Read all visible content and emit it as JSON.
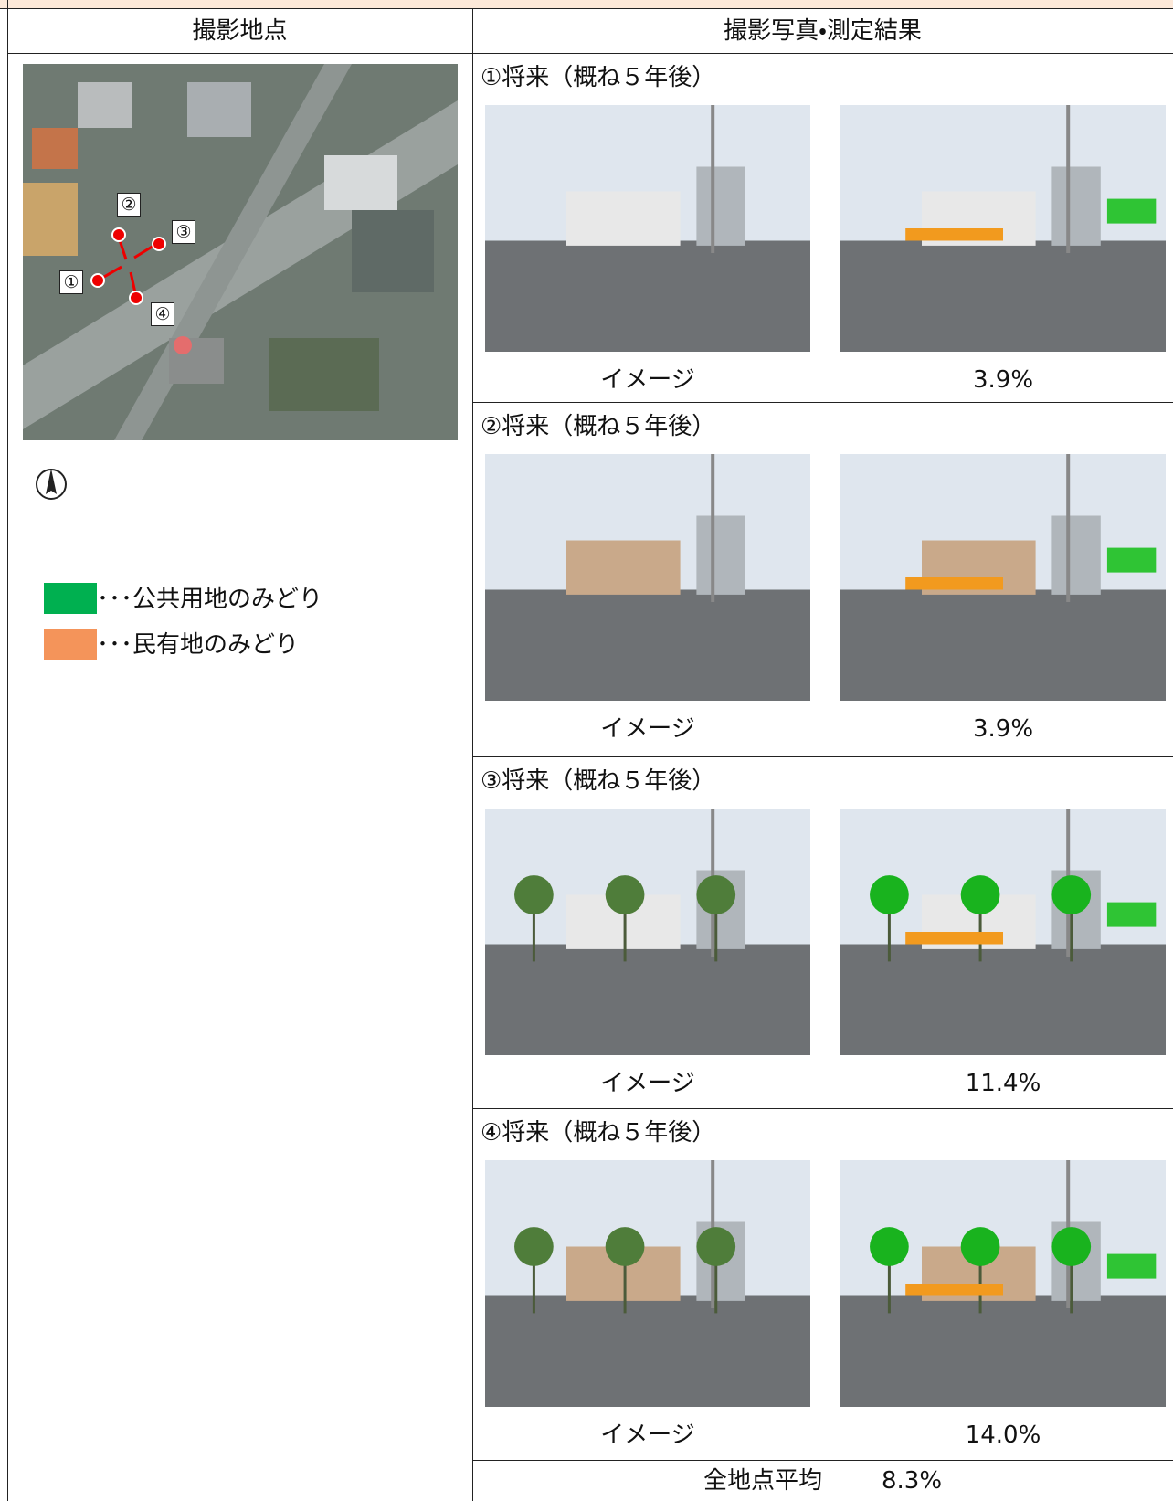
{
  "header": {
    "left": "撮影地点",
    "right": "撮影写真・測定結果"
  },
  "map": {
    "labels": [
      "①",
      "②",
      "③",
      "④"
    ]
  },
  "legend": [
    {
      "text": "･･･公共用地のみどり",
      "color": "#00b050"
    },
    {
      "text": "･･･民有地のみどり",
      "color": "#f4945a"
    }
  ],
  "sections": [
    {
      "title": "①将来（概ね５年後）",
      "caption": "イメージ",
      "result": "3.9%"
    },
    {
      "title": "②将来（概ね５年後）",
      "caption": "イメージ",
      "result": "3.9%"
    },
    {
      "title": "③将来（概ね５年後）",
      "caption": "イメージ",
      "result": "11.4%"
    },
    {
      "title": "④将来（概ね５年後）",
      "caption": "イメージ",
      "result": "14.0%"
    }
  ],
  "footer": {
    "label": "全地点平均",
    "value": "8.3%"
  }
}
